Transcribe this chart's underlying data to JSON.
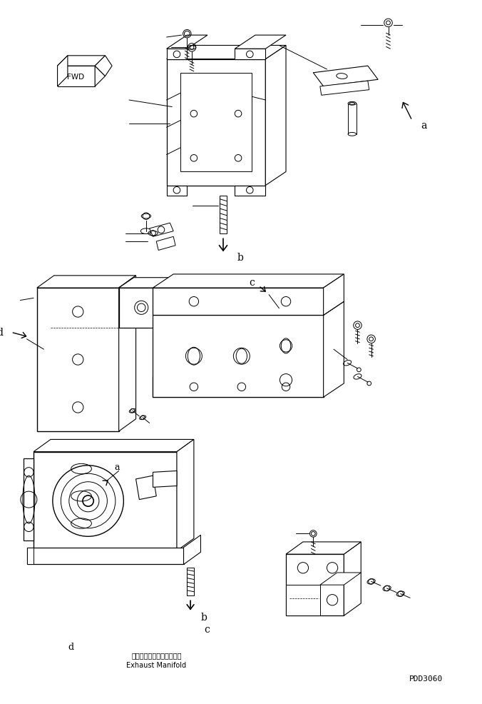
{
  "background_color": "#ffffff",
  "line_color": "#000000",
  "fig_width": 6.76,
  "fig_height": 9.87,
  "dpi": 100,
  "title": "PDD3060",
  "label_d_ja": "エキゾーストマニホールド",
  "label_d_en": "Exhaust Manifold"
}
